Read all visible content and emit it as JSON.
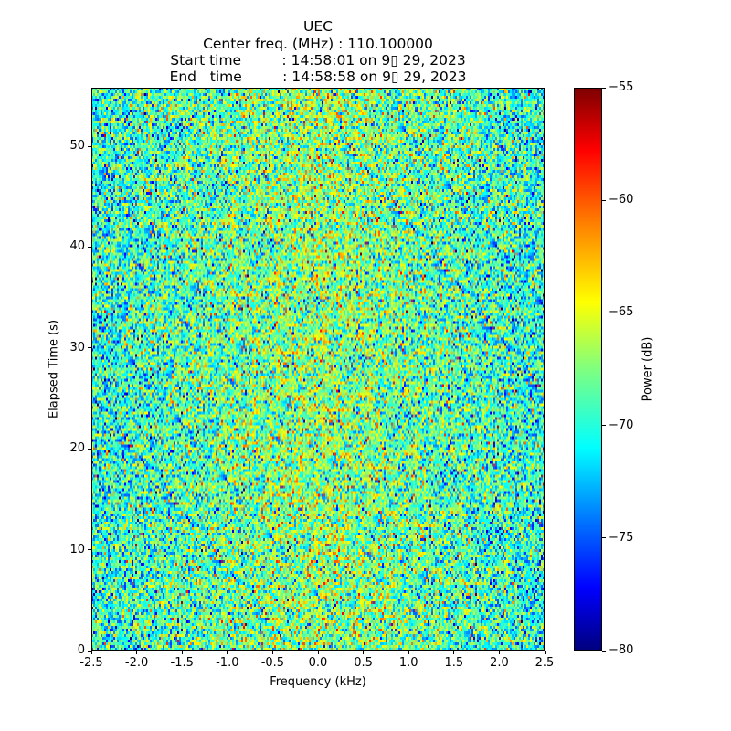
{
  "chart_data": {
    "type": "heatmap",
    "title_lines": [
      "UEC",
      "Center freq. (MHz) : 110.100000",
      "Start time         : 14:58:01 on 9▯ 29, 2023",
      "End   time         : 14:58:58 on 9▯ 29, 2023"
    ],
    "xlabel": "Frequency (kHz)",
    "ylabel": "Elapsed Time (s)",
    "xlim": [
      -2.5,
      2.5
    ],
    "ylim": [
      0,
      55.8
    ],
    "xticks": [
      "-2.5",
      "-2.0",
      "-1.5",
      "-1.0",
      "-0.5",
      "0.0",
      "0.5",
      "1.0",
      "1.5",
      "2.0",
      "2.5"
    ],
    "yticks": [
      "0",
      "10",
      "20",
      "30",
      "40",
      "50"
    ],
    "colormap": "jet",
    "colorbar": {
      "label": "Power (dB)",
      "vmin": -80,
      "vmax": -55,
      "ticks": [
        "−55",
        "−60",
        "−65",
        "−70",
        "−75",
        "−80"
      ]
    },
    "values_summary": {
      "description": "noise-like power spectrogram",
      "mean_db": -68.5,
      "std_db": 3.5,
      "center_mean_db": -67,
      "edge_mean_db": -70
    },
    "grid": false
  }
}
